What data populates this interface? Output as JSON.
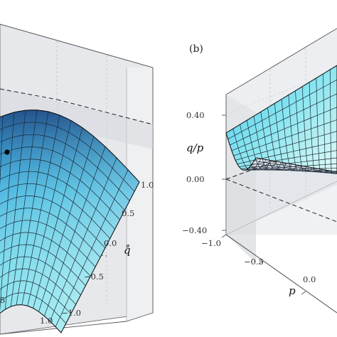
{
  "chart_data": [
    {
      "type": "surface",
      "panel_label": "",
      "axes": {
        "x": {
          "label": "",
          "ticks": [
            "1.0",
            "5"
          ]
        },
        "y": {
          "label": "q̊",
          "ticks": [
            "1.0",
            "0.5",
            "0.0",
            "−0.5",
            "−1.0"
          ],
          "range": [
            -1.0,
            1.0
          ]
        }
      },
      "annotations": [
        "black marker point on surface",
        "dashed reference plane"
      ],
      "surface_color": "#5ad6ec",
      "mesh": "grid",
      "shape": "dome (concave down)"
    },
    {
      "type": "surface",
      "panel_label": "(b)",
      "axes": {
        "x": {
          "label": "p",
          "ticks": [
            "−1.0",
            "−0.5",
            "0.0"
          ],
          "range": [
            -1.0,
            1.0
          ]
        },
        "z": {
          "label": "q/p",
          "ticks": [
            "0.40",
            "0.00",
            "−0.40"
          ],
          "range": [
            -0.4,
            0.4
          ]
        }
      },
      "annotations": [
        "dashed reference plane at 0.00"
      ],
      "surface_color": "#5ad6ec",
      "mesh": "grid",
      "shape": "bowl (concave up)"
    }
  ]
}
